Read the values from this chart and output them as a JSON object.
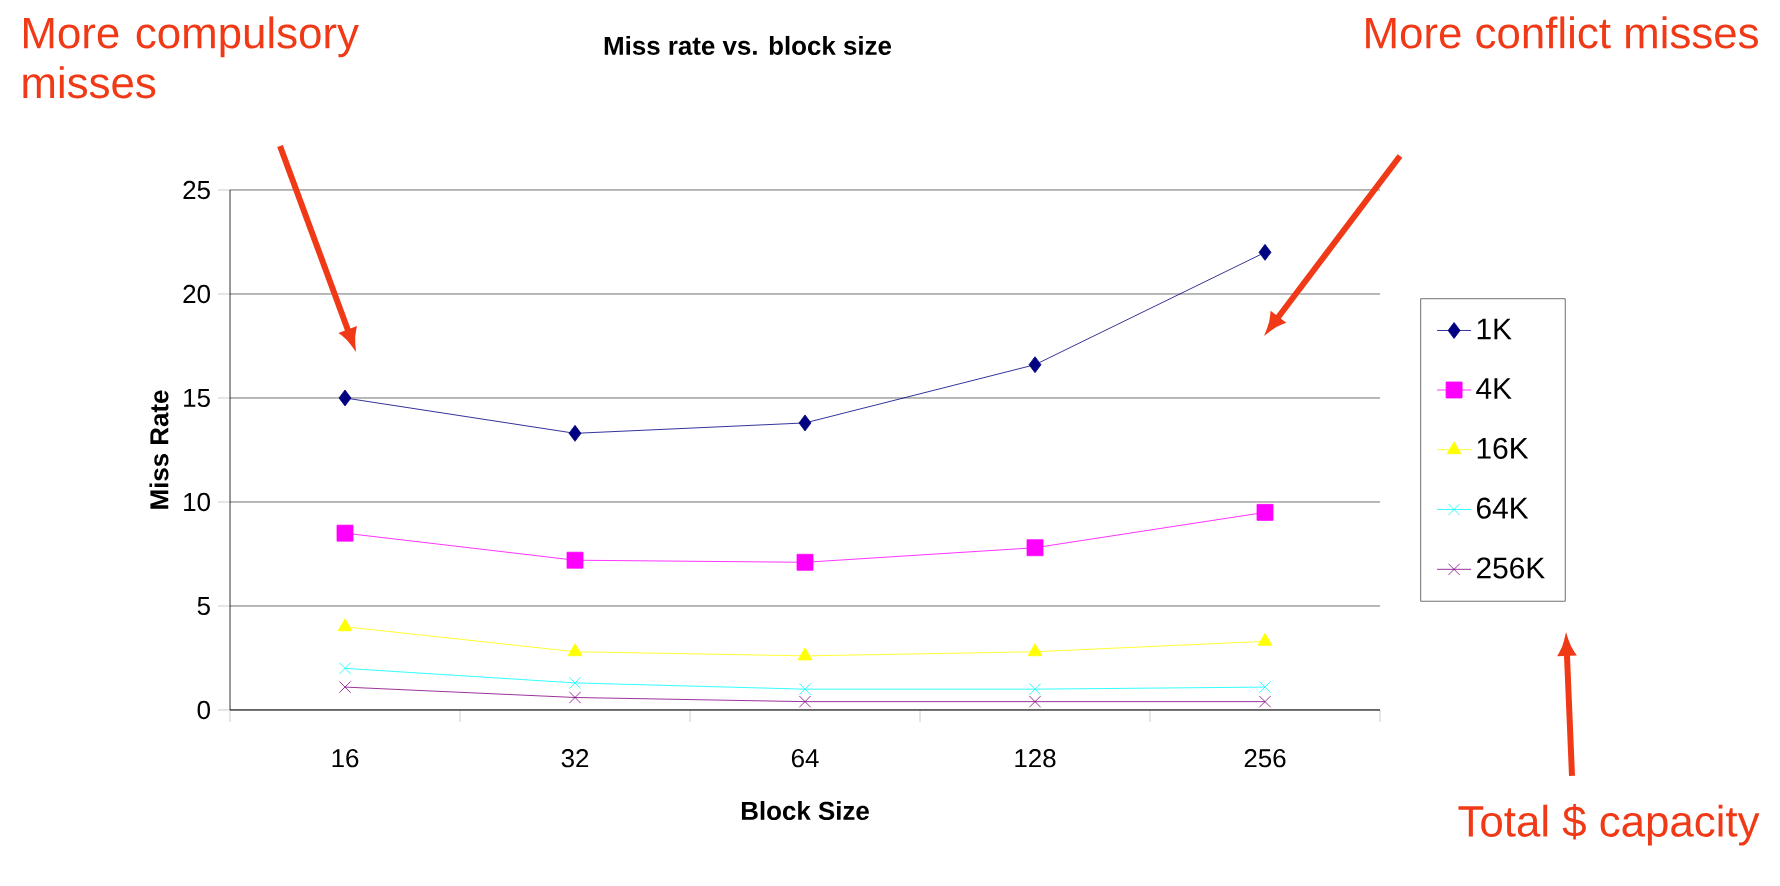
{
  "chart_data": {
    "type": "line",
    "title": "Miss rate vs. block size",
    "xlabel": "Block Size",
    "ylabel": "Miss Rate",
    "categories": [
      "16",
      "32",
      "64",
      "128",
      "256"
    ],
    "series": [
      {
        "name": "1K",
        "color": "#000080",
        "marker": "diamond",
        "values": [
          15,
          13.3,
          13.8,
          16.6,
          22
        ]
      },
      {
        "name": "4K",
        "color": "#ff00ff",
        "marker": "square",
        "values": [
          8.5,
          7.2,
          7.1,
          7.8,
          9.5
        ]
      },
      {
        "name": "16K",
        "color": "#ffff00",
        "marker": "triangle",
        "values": [
          4.0,
          2.8,
          2.6,
          2.8,
          3.3
        ]
      },
      {
        "name": "64K",
        "color": "#00ffff",
        "marker": "cross",
        "values": [
          2.0,
          1.3,
          1.0,
          1.0,
          1.1
        ]
      },
      {
        "name": "256K",
        "color": "#800080",
        "marker": "cross",
        "values": [
          1.1,
          0.6,
          0.4,
          0.4,
          0.4
        ]
      }
    ],
    "ylim": [
      0,
      25
    ],
    "yticks": [
      0,
      5,
      10,
      15,
      20,
      25
    ],
    "grid": "y",
    "legend": "right",
    "line_style": "solid",
    "annotations": [
      "More compulsory misses",
      "More conflict misses",
      "Total $ capacity"
    ]
  }
}
